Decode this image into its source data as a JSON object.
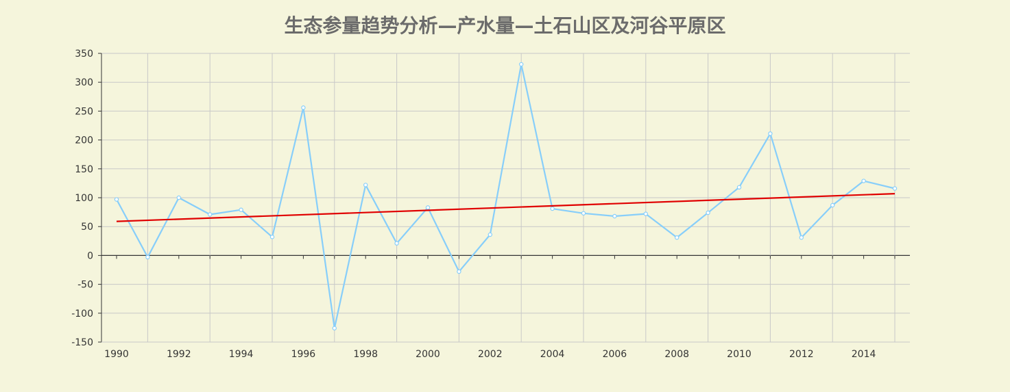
{
  "colors": {
    "background": "#f5f5dc",
    "series_line": "#87cefa",
    "trend_line": "#e00000",
    "grid": "#c8c8c8",
    "axis": "#333333",
    "title": "#6b6b6b"
  },
  "chart_data": {
    "type": "line",
    "title": "生态参量趋势分析—产水量—土石山区及河谷平原区",
    "xlabel": "",
    "ylabel": "",
    "ylim": [
      -150,
      350
    ],
    "yticks": [
      -150,
      -100,
      -50,
      0,
      50,
      100,
      150,
      200,
      250,
      300,
      350
    ],
    "xlim": [
      1990,
      2015
    ],
    "xticks": [
      1990,
      1992,
      1994,
      1996,
      1998,
      2000,
      2002,
      2004,
      2006,
      2008,
      2010,
      2012,
      2014
    ],
    "grid": true,
    "legend": "none",
    "x": [
      1990,
      1991,
      1992,
      1993,
      1994,
      1995,
      1996,
      1997,
      1998,
      1999,
      2000,
      2001,
      2002,
      2003,
      2004,
      2005,
      2006,
      2007,
      2008,
      2009,
      2010,
      2011,
      2012,
      2013,
      2014,
      2015
    ],
    "series": [
      {
        "values": [
          97,
          -3,
          100,
          71,
          79,
          32,
          256,
          -126,
          122,
          21,
          83,
          -28,
          36,
          331,
          81,
          73,
          68,
          72,
          31,
          74,
          118,
          211,
          31,
          87,
          129,
          116
        ],
        "color": "#87cefa",
        "markers": true
      },
      {
        "kind": "trend",
        "values": [
          59,
          107
        ],
        "x": [
          1990,
          2015
        ],
        "color": "#e00000",
        "markers": false
      }
    ]
  }
}
